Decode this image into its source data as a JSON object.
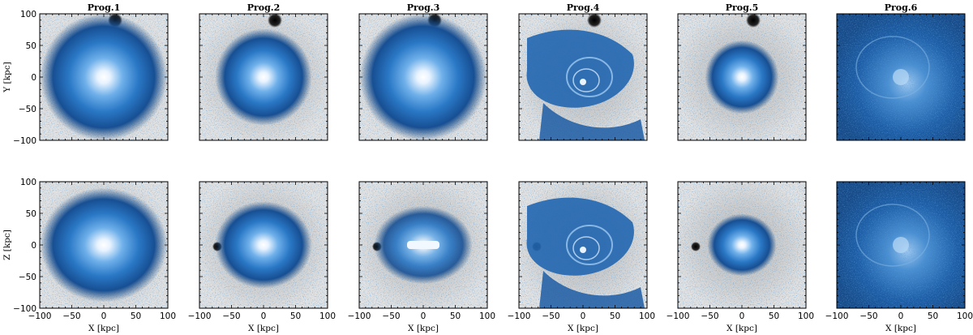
{
  "figure": {
    "panel_titles": [
      "Prog.1",
      "Prog.2",
      "Prog.3",
      "Prog.4",
      "Prog.5",
      "Prog.6"
    ],
    "rows": [
      {
        "ylabel": "Y [kpc]"
      },
      {
        "ylabel": "Z [kpc]"
      }
    ],
    "xlabel": "X [kpc]",
    "x_ticks": [
      "−100",
      "−50",
      "0",
      "50",
      "100"
    ],
    "y_ticks": [
      "100",
      "50",
      "0",
      "−50",
      "−100"
    ],
    "axis_range_kpc": [
      -100,
      100
    ],
    "colors": {
      "star_blue": "#1a5aa0",
      "core_white": "#ffffff",
      "background_gray": "#c9c9c9",
      "dark_blob": "#111111"
    },
    "panels": [
      {
        "row": 0,
        "col": 0,
        "style": "round-blue",
        "core_size": 0.55,
        "gray_bg": true
      },
      {
        "row": 0,
        "col": 1,
        "style": "round-blue",
        "core_size": 0.42,
        "gray_bg": true
      },
      {
        "row": 0,
        "col": 2,
        "style": "round-blue",
        "core_size": 0.55,
        "gray_bg": true
      },
      {
        "row": 0,
        "col": 3,
        "style": "shells",
        "core_size": 0.5,
        "gray_bg": true
      },
      {
        "row": 0,
        "col": 4,
        "style": "round-blue",
        "core_size": 0.32,
        "gray_bg": true
      },
      {
        "row": 0,
        "col": 5,
        "style": "diffuse",
        "core_size": 0.9,
        "gray_bg": false
      },
      {
        "row": 1,
        "col": 0,
        "style": "round-blue",
        "core_size": 0.55,
        "gray_bg": true
      },
      {
        "row": 1,
        "col": 1,
        "style": "round-blue",
        "core_size": 0.42,
        "gray_bg": true
      },
      {
        "row": 1,
        "col": 2,
        "style": "bar",
        "core_size": 0.45,
        "gray_bg": true
      },
      {
        "row": 1,
        "col": 3,
        "style": "shells",
        "core_size": 0.5,
        "gray_bg": true
      },
      {
        "row": 1,
        "col": 4,
        "style": "round-blue",
        "core_size": 0.3,
        "gray_bg": true
      },
      {
        "row": 1,
        "col": 5,
        "style": "diffuse",
        "core_size": 0.9,
        "gray_bg": false
      }
    ]
  }
}
